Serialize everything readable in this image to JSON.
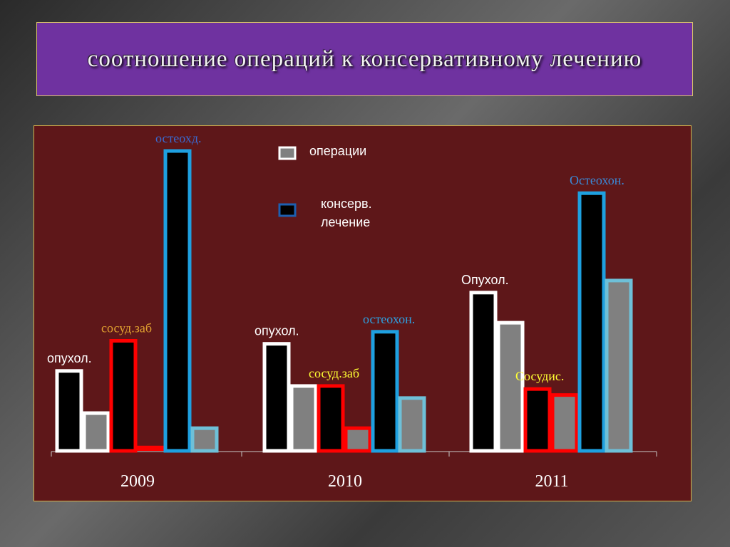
{
  "title": "соотношение операций к  консервативному лечению",
  "legend": [
    {
      "label": "операции",
      "color": "#808080"
    },
    {
      "label_line1": "консерв.",
      "label_line2": "лечение",
      "color": "#000000"
    }
  ],
  "chart_data": {
    "type": "bar",
    "categories": [
      "2009",
      "2010",
      "2011"
    ],
    "ylim": [
      0,
      100
    ],
    "groups": [
      {
        "category": "2009",
        "bars": [
          {
            "label": "опухол.",
            "label_color": "#ffffff",
            "border": "#ffffff",
            "conservative": 27,
            "operations": 13
          },
          {
            "label": "сосуд.заб",
            "label_color": "#e0a030",
            "border": "#ff0000",
            "conservative": 37,
            "operations": 1
          },
          {
            "label": "остеохд.",
            "label_color": "#3a6ad0",
            "border": "#1ea0e0",
            "conservative": 100,
            "operations": 8
          }
        ]
      },
      {
        "category": "2010",
        "bars": [
          {
            "label": "опухол.",
            "label_color": "#ffffff",
            "border": "#ffffff",
            "conservative": 36,
            "operations": 22
          },
          {
            "label": "сосуд.заб",
            "label_color": "#ffff33",
            "border": "#ff0000",
            "conservative": 22,
            "operations": 8
          },
          {
            "label": "остеохон.",
            "label_color": "#2ea0e0",
            "border": "#1ea0e0",
            "conservative": 40,
            "operations": 18
          }
        ]
      },
      {
        "category": "2011",
        "bars": [
          {
            "label": "Опухол.",
            "label_color": "#ffffff",
            "border": "#ffffff",
            "conservative": 53,
            "operations": 43
          },
          {
            "label": "Сосудис.",
            "label_color": "#ffff33",
            "border": "#ff0000",
            "conservative": 21,
            "operations": 19
          },
          {
            "label": "Остеохон.",
            "label_color": "#3a8ad8",
            "border": "#1ea0e0",
            "conservative": 86,
            "operations": 57
          }
        ]
      }
    ]
  }
}
